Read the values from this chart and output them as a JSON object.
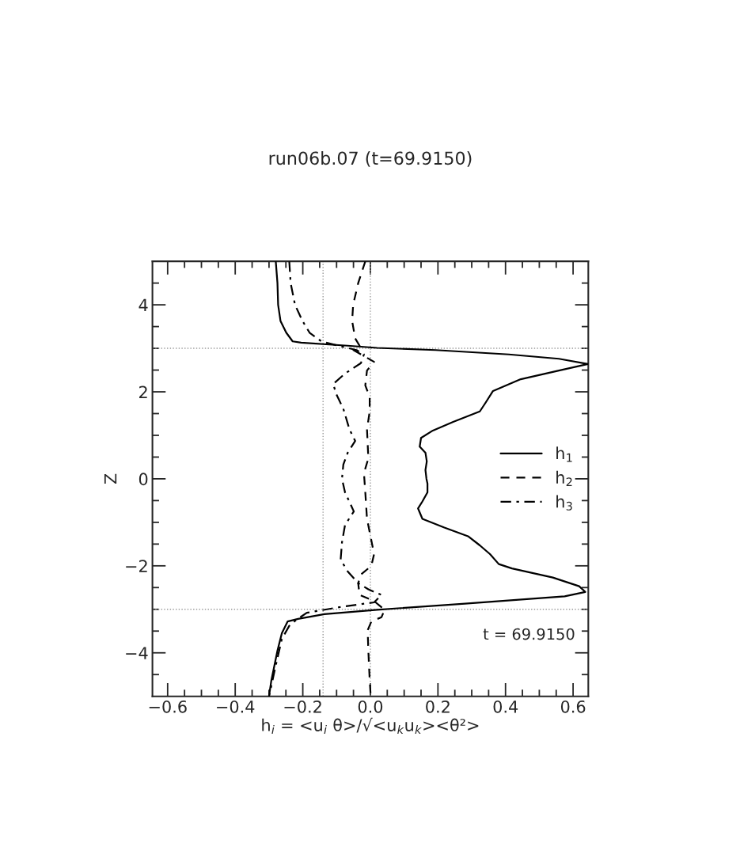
{
  "chart_data": {
    "type": "line",
    "title": "run06b.07 (t=69.9150)",
    "xlabel": "h$_{i}$ = <u$_{i}$ θ>/√<u$_{k}$u$_{k}$><θ²>",
    "ylabel": "Z",
    "annotations": [
      "t = 69.9150"
    ],
    "xlim": [
      -0.645,
      0.645
    ],
    "ylim": [
      -5,
      5
    ],
    "xticks": [
      -0.6,
      {
        "value": -0.55,
        "label": null
      },
      {
        "value": -0.5,
        "label": null
      },
      {
        "value": -0.45,
        "label": null
      },
      -0.4,
      {
        "value": -0.35,
        "label": null
      },
      {
        "value": -0.3,
        "label": null
      },
      {
        "value": -0.25,
        "label": null
      },
      -0.2,
      {
        "value": -0.15,
        "label": null
      },
      {
        "value": -0.1,
        "label": null
      },
      {
        "value": -0.05,
        "label": null
      },
      {
        "value": 0.0,
        "label": "0.0"
      },
      {
        "value": 0.05,
        "label": null
      },
      {
        "value": 0.1,
        "label": null
      },
      {
        "value": 0.15,
        "label": null
      },
      0.2,
      {
        "value": 0.25,
        "label": null
      },
      {
        "value": 0.3,
        "label": null
      },
      {
        "value": 0.35,
        "label": null
      },
      0.4,
      {
        "value": 0.45,
        "label": null
      },
      {
        "value": 0.5,
        "label": null
      },
      {
        "value": 0.55,
        "label": null
      },
      0.6
    ],
    "yticks": [
      {
        "value": -4.5,
        "label": null
      },
      -4,
      {
        "value": -3.5,
        "label": null
      },
      {
        "value": -3,
        "label": null
      },
      {
        "value": -2.5,
        "label": null
      },
      -2,
      {
        "value": -1.5,
        "label": null
      },
      {
        "value": -1,
        "label": null
      },
      {
        "value": -0.5,
        "label": null
      },
      0,
      {
        "value": 0.5,
        "label": null
      },
      {
        "value": 1,
        "label": null
      },
      {
        "value": 1.5,
        "label": null
      },
      2,
      {
        "value": 2.5,
        "label": null
      },
      {
        "value": 3,
        "label": null
      },
      {
        "value": 3.5,
        "label": null
      },
      4,
      {
        "value": 4.5,
        "label": null
      }
    ],
    "orientation": "horizontal",
    "ref_lines": [
      {
        "axis": "x",
        "value": -0.14,
        "color": "#999999",
        "line_style": "dotted"
      },
      {
        "axis": "x",
        "value": 0.0,
        "color": "#999999",
        "line_style": "dotted"
      },
      {
        "axis": "y",
        "value": 3,
        "color": "#999999",
        "line_style": "dotted"
      },
      {
        "axis": "y",
        "value": -3,
        "color": "#999999",
        "line_style": "dotted"
      }
    ],
    "grid": false,
    "legend": "right",
    "series": [
      {
        "name": "h$_{1}$",
        "color": "#000000",
        "line_style": "solid",
        "x": [
          5,
          4.5,
          4.0,
          3.63,
          3.36,
          3.16,
          3.13,
          3.06,
          3.01,
          2.96,
          2.86,
          2.76,
          2.64,
          2.49,
          2.29,
          2.02,
          1.75,
          1.55,
          1.31,
          1.11,
          0.94,
          0.74,
          0.6,
          0.4,
          0.2,
          0.0,
          -0.11,
          -0.31,
          -0.52,
          -0.68,
          -0.92,
          -1.12,
          -1.32,
          -1.53,
          -1.73,
          -1.96,
          -2.06,
          -2.27,
          -2.47,
          -2.6,
          -2.7,
          -2.87,
          -3.01,
          -3.11,
          -3.22,
          -3.28,
          -3.55,
          -3.95,
          -4.29,
          -4.63,
          -5
        ],
        "values": [
          -0.28,
          -0.275,
          -0.273,
          -0.266,
          -0.249,
          -0.23,
          -0.205,
          -0.067,
          0.02,
          0.193,
          0.41,
          0.558,
          0.644,
          0.558,
          0.445,
          0.363,
          0.341,
          0.324,
          0.245,
          0.185,
          0.15,
          0.146,
          0.163,
          0.167,
          0.163,
          0.166,
          0.169,
          0.169,
          0.154,
          0.141,
          0.154,
          0.219,
          0.289,
          0.324,
          0.354,
          0.38,
          0.419,
          0.54,
          0.618,
          0.636,
          0.575,
          0.28,
          0.02,
          -0.136,
          -0.214,
          -0.245,
          -0.262,
          -0.275,
          -0.284,
          -0.293,
          -0.3
        ]
      },
      {
        "name": "h$_{2}$",
        "color": "#000000",
        "line_style": "dashed",
        "x": [
          5,
          4.5,
          4.0,
          3.63,
          3.23,
          3.06,
          2.96,
          2.69,
          2.49,
          2.15,
          1.88,
          1.55,
          1.14,
          0.47,
          0.13,
          -0.31,
          -0.92,
          -1.73,
          -2.0,
          -2.2,
          -2.4,
          -2.67,
          -2.81,
          -3.01,
          -3.18,
          -3.28,
          -3.48,
          -3.95,
          -4.63,
          -5
        ],
        "values": [
          -0.015,
          -0.036,
          -0.051,
          -0.054,
          -0.045,
          -0.032,
          -0.05,
          0.011,
          -0.01,
          -0.015,
          -0.002,
          -0.002,
          -0.01,
          -0.006,
          -0.019,
          -0.015,
          -0.01,
          0.011,
          0.003,
          -0.028,
          -0.036,
          -0.032,
          0.011,
          0.042,
          0.033,
          0.003,
          -0.008,
          -0.006,
          -0.002,
          0.001
        ]
      },
      {
        "name": "h$_{3}$",
        "color": "#000000",
        "line_style": "dashdot",
        "x": [
          5,
          4.5,
          4.0,
          3.63,
          3.36,
          3.16,
          3.04,
          2.96,
          2.86,
          2.66,
          2.42,
          2.18,
          1.95,
          1.61,
          1.14,
          0.87,
          0.6,
          0.33,
          0.0,
          -0.31,
          -0.75,
          -1.06,
          -1.46,
          -1.86,
          -2.13,
          -2.4,
          -2.54,
          -2.67,
          -2.84,
          -2.94,
          -3.08,
          -3.24,
          -3.38,
          -3.68,
          -4.29,
          -5
        ],
        "values": [
          -0.24,
          -0.236,
          -0.223,
          -0.201,
          -0.18,
          -0.145,
          -0.084,
          -0.041,
          -0.019,
          -0.028,
          -0.075,
          -0.11,
          -0.101,
          -0.08,
          -0.062,
          -0.045,
          -0.067,
          -0.08,
          -0.084,
          -0.075,
          -0.049,
          -0.075,
          -0.084,
          -0.088,
          -0.067,
          -0.036,
          -0.006,
          0.033,
          0.011,
          -0.084,
          -0.188,
          -0.219,
          -0.24,
          -0.262,
          -0.28,
          -0.3
        ]
      }
    ]
  }
}
